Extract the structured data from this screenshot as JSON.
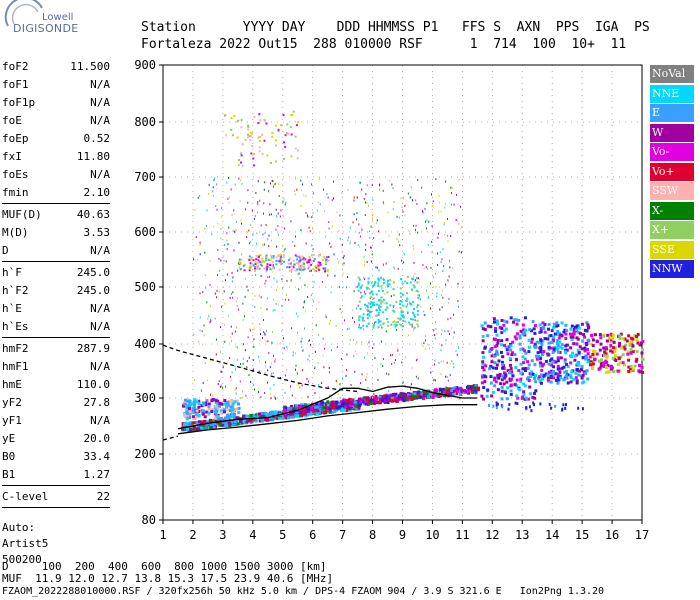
{
  "logo": {
    "line1": "Lowell",
    "line2": "DIGISONDE"
  },
  "header": {
    "labels_line": "Station      YYYY DAY    DDD HHMMSS P1   FFS S  AXN  PPS  IGA  PS",
    "values_line": "Fortaleza 2022 Out15  288 010000 RSF      1  714  100  10+  11"
  },
  "params_groups": [
    [
      {
        "k": "foF2",
        "v": "11.500"
      },
      {
        "k": "foF1",
        "v": "N/A"
      },
      {
        "k": "foF1p",
        "v": "N/A"
      },
      {
        "k": "foE",
        "v": "N/A"
      },
      {
        "k": "foEp",
        "v": "0.52"
      },
      {
        "k": "fxI",
        "v": "11.80"
      },
      {
        "k": "foEs",
        "v": "N/A"
      },
      {
        "k": "fmin",
        "v": "2.10"
      }
    ],
    [
      {
        "k": "MUF(D)",
        "v": "40.63"
      },
      {
        "k": "M(D)",
        "v": "3.53"
      },
      {
        "k": "D",
        "v": "N/A"
      }
    ],
    [
      {
        "k": "h`F",
        "v": "245.0"
      },
      {
        "k": "h`F2",
        "v": "245.0"
      },
      {
        "k": "h`E",
        "v": "N/A"
      },
      {
        "k": "h`Es",
        "v": "N/A"
      }
    ],
    [
      {
        "k": "hmF2",
        "v": "287.9"
      },
      {
        "k": "hmF1",
        "v": "N/A"
      },
      {
        "k": "hmE",
        "v": "110.0"
      },
      {
        "k": "yF2",
        "v": "27.8"
      },
      {
        "k": "yF1",
        "v": "N/A"
      },
      {
        "k": "yE",
        "v": "20.0"
      },
      {
        "k": "B0",
        "v": "33.4"
      },
      {
        "k": "B1",
        "v": "1.27"
      }
    ],
    [
      {
        "k": "C-level",
        "v": "22"
      }
    ]
  ],
  "notes": [
    "Auto:",
    "Artist5",
    "500200"
  ],
  "legend": [
    {
      "label": "NoVal",
      "color": "#808080"
    },
    {
      "label": "NNE",
      "color": "#00d8ff"
    },
    {
      "label": "E",
      "color": "#3aa0ff"
    },
    {
      "label": "W",
      "color": "#a000a0"
    },
    {
      "label": "Vo-",
      "color": "#e000e0"
    },
    {
      "label": "Vo+",
      "color": "#e00030"
    },
    {
      "label": "SSW",
      "color": "#ffb0b0"
    },
    {
      "label": "X-",
      "color": "#008000"
    },
    {
      "label": "X+",
      "color": "#90d060"
    },
    {
      "label": "SSE",
      "color": "#d8d800"
    },
    {
      "label": "NNW",
      "color": "#2020e0"
    }
  ],
  "chart_data": {
    "type": "scatter",
    "x_ticks": [
      "1",
      "2",
      "3",
      "4",
      "5",
      "6",
      "7",
      "8",
      "9",
      "10",
      "11",
      "12",
      "13",
      "14",
      "15",
      "16",
      "17"
    ],
    "y_ticks": [
      "80",
      "200",
      "300",
      "400",
      "500",
      "600",
      "700",
      "800",
      "900"
    ],
    "xlim": [
      1,
      17
    ],
    "ylim_labels": "80 to 900 (nonlinear)",
    "grid": true,
    "lines": [
      {
        "color": "#000000",
        "points": [
          [
            1.5,
            245
          ],
          [
            2.5,
            255
          ],
          [
            3.5,
            262
          ],
          [
            4.5,
            265
          ],
          [
            5.5,
            278
          ],
          [
            6.5,
            300
          ],
          [
            7,
            318
          ],
          [
            7.5,
            318
          ],
          [
            8,
            312
          ],
          [
            8.5,
            320
          ],
          [
            9,
            322
          ],
          [
            9.5,
            318
          ],
          [
            10,
            310
          ],
          [
            10.5,
            305
          ],
          [
            11,
            300
          ],
          [
            11.5,
            300
          ]
        ]
      },
      {
        "color": "#000000",
        "points": [
          [
            1.5,
            236
          ],
          [
            2.5,
            243
          ],
          [
            3.5,
            248
          ],
          [
            4.5,
            254
          ],
          [
            5.5,
            260
          ],
          [
            6.5,
            268
          ],
          [
            7.5,
            274
          ],
          [
            8.5,
            280
          ],
          [
            9.5,
            285
          ],
          [
            10.5,
            288
          ],
          [
            11.5,
            288
          ]
        ]
      },
      {
        "color": "#000000",
        "dashed": true,
        "points": [
          [
            1.0,
            225
          ],
          [
            1.5,
            232
          ]
        ]
      },
      {
        "color": "#000000",
        "dashed": true,
        "points": [
          [
            1.0,
            398
          ],
          [
            1.5,
            388
          ],
          [
            2.5,
            373
          ],
          [
            3.5,
            358
          ],
          [
            4.5,
            342
          ],
          [
            5.5,
            328
          ],
          [
            6.5,
            318
          ],
          [
            7.5,
            312
          ]
        ]
      }
    ]
  },
  "footer": {
    "d_line": "D     100  200  400  600  800 1000 1500 3000 [km]",
    "muf_line": "MUF  11.9 12.0 12.7 13.8 15.3 17.5 23.9 40.6 [MHz]",
    "info_line": "FZAOM_2022288010000.RSF / 320fx256h 50 kHz 5.0 km / DPS-4 FZAOM 904 / 3.9 S 321.6 E   Ion2Png 1.3.20"
  }
}
